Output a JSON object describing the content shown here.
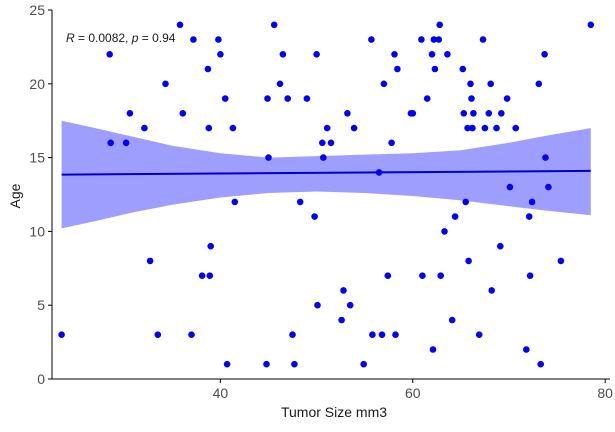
{
  "chart_data": {
    "type": "scatter",
    "title": "",
    "xlabel": "Tumor Size mm3",
    "ylabel": "Age",
    "xlim": [
      22.5,
      80.5
    ],
    "ylim": [
      0,
      25
    ],
    "x_ticks": [
      40,
      60,
      80
    ],
    "y_ticks": [
      0,
      5,
      10,
      15,
      20,
      25
    ],
    "grid": false,
    "colors": {
      "points": "#0000ff",
      "fit_line": "#0000cc",
      "band": "#9999ff",
      "axis": "#000000"
    },
    "annotation": {
      "r_symbol": "R",
      "r_value": " = 0.0082, ",
      "p_symbol": "p",
      "p_value": " = 0.94"
    },
    "fit": {
      "x": [
        23.5,
        78.5
      ],
      "y": [
        13.85,
        14.1
      ]
    },
    "confidence_band": {
      "x": [
        23.5,
        27,
        31,
        35,
        40,
        45,
        50,
        55,
        60,
        65,
        70,
        74,
        78.5
      ],
      "upper": [
        17.5,
        17.0,
        16.4,
        15.8,
        15.3,
        15.0,
        15.1,
        15.2,
        15.3,
        15.5,
        16.0,
        16.5,
        17.0
      ],
      "lower": [
        10.2,
        10.7,
        11.3,
        11.8,
        12.3,
        12.6,
        12.7,
        12.6,
        12.4,
        12.1,
        11.7,
        11.4,
        11.1
      ]
    },
    "points": [
      [
        23.5,
        3
      ],
      [
        28.5,
        22
      ],
      [
        28.6,
        16
      ],
      [
        30.2,
        16
      ],
      [
        30.6,
        18
      ],
      [
        32.1,
        17
      ],
      [
        32.7,
        8
      ],
      [
        33.5,
        3
      ],
      [
        34.3,
        20
      ],
      [
        35.8,
        24
      ],
      [
        36.1,
        18
      ],
      [
        37,
        3
      ],
      [
        37.2,
        23
      ],
      [
        38.1,
        7
      ],
      [
        38.7,
        21
      ],
      [
        38.8,
        17
      ],
      [
        38.9,
        7
      ],
      [
        39,
        9
      ],
      [
        39.8,
        23
      ],
      [
        40,
        22
      ],
      [
        40.5,
        19
      ],
      [
        40.7,
        1
      ],
      [
        41.3,
        17
      ],
      [
        41.5,
        12
      ],
      [
        44.8,
        1
      ],
      [
        44.9,
        19
      ],
      [
        45,
        15
      ],
      [
        45.6,
        24
      ],
      [
        46.2,
        20
      ],
      [
        46.5,
        22
      ],
      [
        47,
        19
      ],
      [
        47.5,
        3
      ],
      [
        47.7,
        1
      ],
      [
        48.3,
        12
      ],
      [
        49,
        19
      ],
      [
        49.8,
        11
      ],
      [
        50,
        22
      ],
      [
        50.1,
        5
      ],
      [
        50.6,
        16
      ],
      [
        50.7,
        15
      ],
      [
        51.1,
        17
      ],
      [
        51.5,
        16
      ],
      [
        52.6,
        4
      ],
      [
        52.8,
        6
      ],
      [
        53.2,
        18
      ],
      [
        53.5,
        5
      ],
      [
        53.9,
        17
      ],
      [
        54.9,
        1
      ],
      [
        55.7,
        23
      ],
      [
        55.8,
        3
      ],
      [
        56.5,
        14
      ],
      [
        56.8,
        3
      ],
      [
        57,
        20
      ],
      [
        57.4,
        7
      ],
      [
        57.8,
        16
      ],
      [
        58.1,
        22
      ],
      [
        58.2,
        3
      ],
      [
        58.4,
        21
      ],
      [
        59.8,
        18
      ],
      [
        60,
        18
      ],
      [
        60.9,
        23
      ],
      [
        61,
        7
      ],
      [
        61.5,
        19
      ],
      [
        62,
        22
      ],
      [
        62.1,
        2
      ],
      [
        62.2,
        23
      ],
      [
        62.3,
        21
      ],
      [
        62.7,
        23
      ],
      [
        62.8,
        24
      ],
      [
        62.9,
        7
      ],
      [
        63.3,
        10
      ],
      [
        63.6,
        22
      ],
      [
        64.1,
        4
      ],
      [
        64.4,
        11
      ],
      [
        65.2,
        21
      ],
      [
        65.3,
        18
      ],
      [
        65.5,
        12
      ],
      [
        65.7,
        17
      ],
      [
        65.8,
        8
      ],
      [
        66,
        20
      ],
      [
        66.1,
        19
      ],
      [
        66.2,
        17
      ],
      [
        66.3,
        18
      ],
      [
        66.9,
        3
      ],
      [
        67.3,
        23
      ],
      [
        67.5,
        17
      ],
      [
        67.9,
        18
      ],
      [
        68.1,
        20
      ],
      [
        68.2,
        6
      ],
      [
        68.7,
        17
      ],
      [
        69.1,
        9
      ],
      [
        69.2,
        18
      ],
      [
        69.8,
        19
      ],
      [
        70.1,
        13
      ],
      [
        70.7,
        17
      ],
      [
        71.8,
        2
      ],
      [
        72.1,
        11
      ],
      [
        72.2,
        7
      ],
      [
        72.4,
        12
      ],
      [
        73.1,
        20
      ],
      [
        73.3,
        1
      ],
      [
        73.7,
        22
      ],
      [
        73.8,
        15
      ],
      [
        74.1,
        13
      ],
      [
        75.4,
        8
      ],
      [
        78.5,
        24
      ]
    ]
  }
}
